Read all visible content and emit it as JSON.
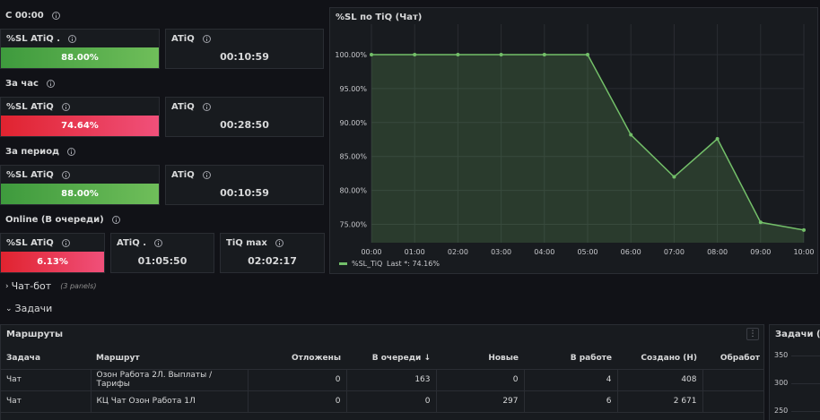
{
  "sections": {
    "since_midnight": "С 00:00",
    "per_hour": "За час",
    "per_period": "За период",
    "online": "Online (В очереди)"
  },
  "stats": {
    "sl1": {
      "title": "%SL ATiQ .",
      "value": "88.00%",
      "color": "#5aaa4a"
    },
    "atiq1": {
      "title": "ATiQ",
      "value": "00:10:59"
    },
    "sl2": {
      "title": "%SL ATiQ",
      "value": "74.64%",
      "color": "#e8253b"
    },
    "atiq2": {
      "title": "ATiQ",
      "value": "00:28:50"
    },
    "sl3": {
      "title": "%SL ATiQ",
      "value": "88.00%",
      "color": "#5aaa4a"
    },
    "atiq3": {
      "title": "ATiQ",
      "value": "00:10:59"
    },
    "sl4": {
      "title": "%SL ATiQ",
      "value": "6.13%",
      "color": "#e8253b"
    },
    "atiq4": {
      "title": "ATiQ .",
      "value": "01:05:50"
    },
    "tiqmax": {
      "title": "TiQ max",
      "value": "02:02:17"
    }
  },
  "chart_panel": {
    "title": "%SL по TiQ (Чат)"
  },
  "chart_data": {
    "type": "area",
    "title": "%SL по TiQ (Чат)",
    "x": [
      "00:00",
      "01:00",
      "02:00",
      "03:00",
      "04:00",
      "05:00",
      "06:00",
      "07:00",
      "08:00",
      "09:00",
      "10:00"
    ],
    "series": [
      {
        "name": "%SL_TiQ",
        "values": [
          100.0,
          100.0,
          100.0,
          100.0,
          100.0,
          100.0,
          88.2,
          82.0,
          87.6,
          75.3,
          74.16
        ]
      }
    ],
    "y_ticks": [
      "100.00%",
      "95.00%",
      "90.00%",
      "85.00%",
      "80.00%",
      "75.00%"
    ],
    "ylim": [
      72.3,
      100.0
    ],
    "legend": "bottom-left",
    "legend_text": "%SL_TiQ",
    "legend_last": "Last *: 74.16%",
    "grid": true,
    "line_color": "#73bf69"
  },
  "rows": {
    "chatbot": {
      "label": "Чат-бот",
      "note": "(3 panels)"
    },
    "tasks": {
      "label": "Задачи"
    }
  },
  "routes": {
    "title": "Маршруты",
    "columns": [
      "Задача",
      "Маршрут",
      "Отложены",
      "В очереди",
      "Новые",
      "В работе",
      "Создано (Н)",
      "Обработ"
    ],
    "sort_arrow": "↓",
    "rows": [
      [
        "Чат",
        "Озон Работа 2Л. Выплаты / Тарифы",
        "0",
        "163",
        "0",
        "4",
        "408",
        ""
      ],
      [
        "Чат",
        "КЦ Чат Озон Работа 1Л",
        "0",
        "0",
        "297",
        "6",
        "2 671",
        ""
      ]
    ],
    "menu": "⋮"
  },
  "tasks_panel": {
    "title": "Задачи (Ча",
    "y_ticks": [
      "350",
      "300",
      "250"
    ]
  }
}
